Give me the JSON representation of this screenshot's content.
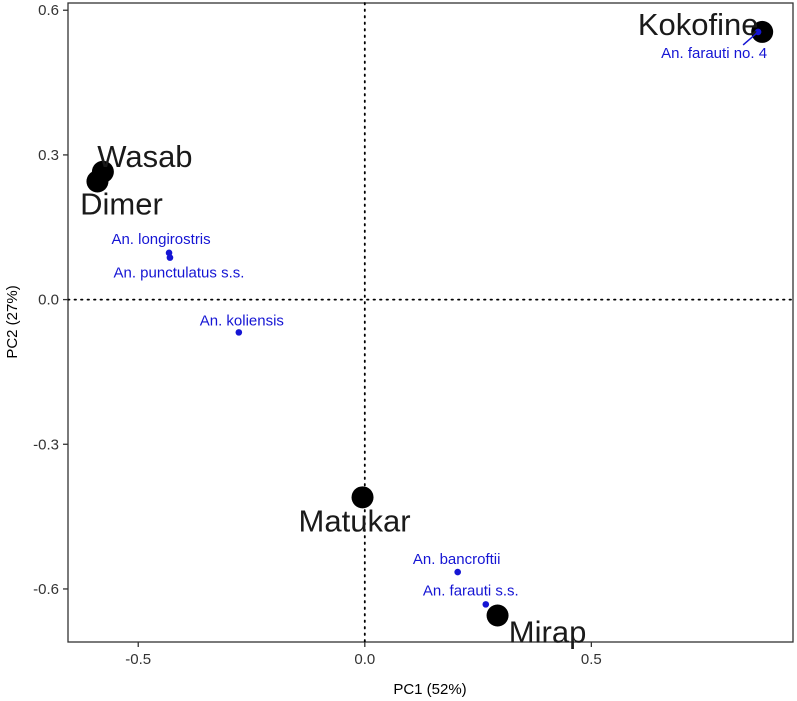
{
  "chart_data": {
    "type": "scatter",
    "xlabel": "PC1 (52%)",
    "ylabel": "PC2 (27%)",
    "xlim": [
      -0.655,
      0.945
    ],
    "ylim": [
      -0.71,
      0.615
    ],
    "x_ticks": [
      -0.5,
      0.0,
      0.5
    ],
    "y_ticks": [
      -0.6,
      -0.3,
      0.0,
      0.3,
      0.6
    ],
    "x_tick_labels": [
      "-0.5",
      "0.0",
      "0.5"
    ],
    "y_tick_labels": [
      "-0.6",
      "-0.3",
      "0.0",
      "0.3",
      "0.6"
    ],
    "reference_lines": {
      "x": 0,
      "y": 0,
      "style": "dotted"
    },
    "grid": false,
    "colors": {
      "sites": "#000000",
      "species": "#1515d4",
      "axis": "#333333"
    },
    "series": [
      {
        "name": "",
        "kind": "sites",
        "points": [
          {
            "label": "Kokofine",
            "x": 0.877,
            "y": 0.555
          },
          {
            "label": "Wasab",
            "x": -0.578,
            "y": 0.265
          },
          {
            "label": "Dimer",
            "x": -0.59,
            "y": 0.245
          },
          {
            "label": "Matukar",
            "x": -0.005,
            "y": -0.41
          },
          {
            "label": "Mirap",
            "x": 0.293,
            "y": -0.655
          }
        ]
      },
      {
        "name": "",
        "kind": "species",
        "points": [
          {
            "label": "An. farauti no. 4",
            "x": 0.868,
            "y": 0.555
          },
          {
            "label": "An. longirostris",
            "x": -0.432,
            "y": 0.097
          },
          {
            "label": "An. punctulatus s.s.",
            "x": -0.43,
            "y": 0.087
          },
          {
            "label": "An. koliensis",
            "x": -0.278,
            "y": -0.068
          },
          {
            "label": "An. bancroftii",
            "x": 0.205,
            "y": -0.565
          },
          {
            "label": "An. farauti s.s.",
            "x": 0.267,
            "y": -0.632
          }
        ]
      }
    ]
  }
}
